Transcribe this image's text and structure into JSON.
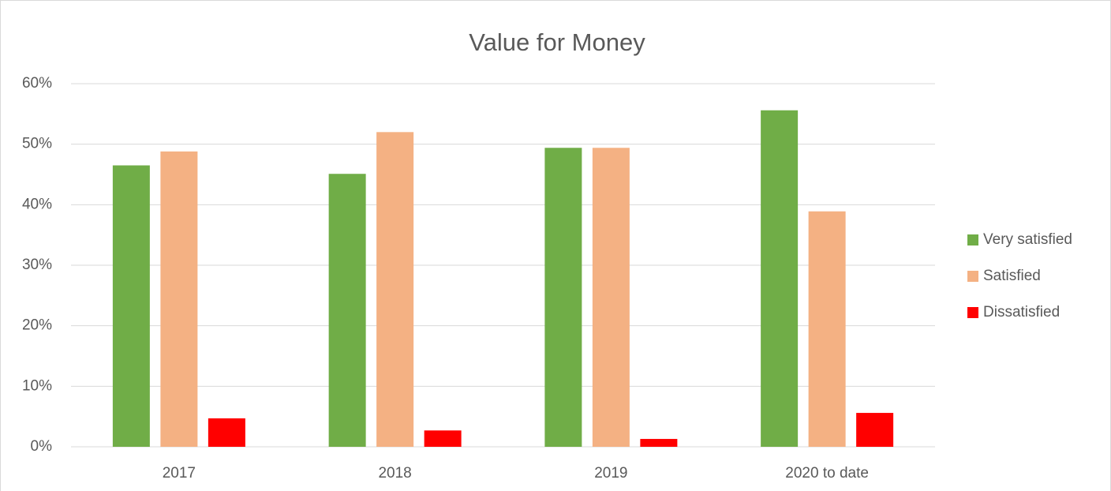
{
  "chart_data": {
    "type": "bar",
    "title": "Value for Money",
    "categories": [
      "2017",
      "2018",
      "2019",
      "2020 to date"
    ],
    "series": [
      {
        "name": "Very satisfied",
        "color": "#70ad47",
        "values": [
          46.5,
          45.1,
          49.4,
          55.6
        ]
      },
      {
        "name": "Satisfied",
        "color": "#f4b183",
        "values": [
          48.8,
          52.0,
          49.4,
          38.9
        ]
      },
      {
        "name": "Dissatisfied",
        "color": "#ff0000",
        "values": [
          4.7,
          2.7,
          1.3,
          5.6
        ]
      }
    ],
    "ylim": [
      0,
      60
    ],
    "yticks": [
      {
        "value": 0,
        "label": "0%"
      },
      {
        "value": 10,
        "label": "10%"
      },
      {
        "value": 20,
        "label": "20%"
      },
      {
        "value": 30,
        "label": "30%"
      },
      {
        "value": 40,
        "label": "40%"
      },
      {
        "value": 50,
        "label": "50%"
      },
      {
        "value": 60,
        "label": "60%"
      }
    ],
    "grid": true,
    "legend": "right"
  }
}
